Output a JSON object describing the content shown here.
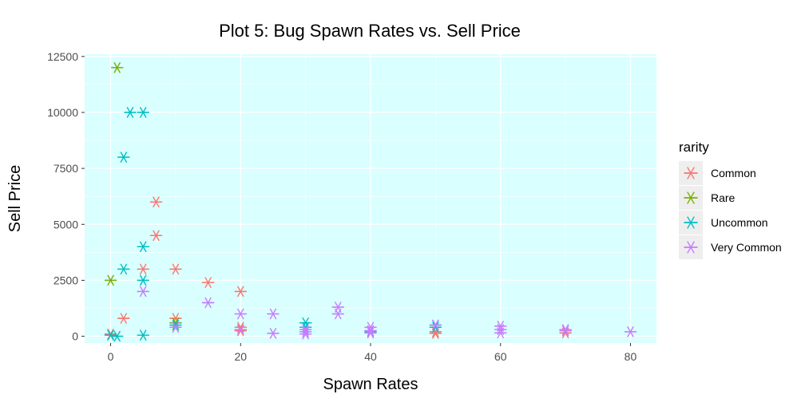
{
  "chart_data": {
    "type": "scatter",
    "title": "Plot 5: Bug Spawn Rates vs. Sell Price",
    "xlabel": "Spawn Rates",
    "ylabel": "Sell Price",
    "xlim": [
      -4,
      84
    ],
    "ylim": [
      -300,
      12600
    ],
    "x_ticks": [
      0,
      20,
      40,
      60,
      80
    ],
    "y_ticks": [
      0,
      2500,
      5000,
      7500,
      10000,
      12500
    ],
    "x_tick_labels": [
      "0",
      "20",
      "40",
      "60",
      "80"
    ],
    "y_tick_labels": [
      "0",
      "2500",
      "5000",
      "7500",
      "10000",
      "12500"
    ],
    "grid": true,
    "panel_background": "#d9ffff",
    "marker": "asterisk",
    "legend": {
      "title": "rarity",
      "position": "right"
    },
    "series": [
      {
        "name": "Common",
        "color": "#f8766d",
        "points": [
          [
            0,
            100
          ],
          [
            2,
            800
          ],
          [
            5,
            3000
          ],
          [
            7,
            6000
          ],
          [
            7,
            4500
          ],
          [
            10,
            3000
          ],
          [
            10,
            800
          ],
          [
            15,
            2400
          ],
          [
            20,
            2000
          ],
          [
            20,
            400
          ],
          [
            20,
            250
          ],
          [
            50,
            200
          ],
          [
            50,
            130
          ],
          [
            70,
            150
          ]
        ]
      },
      {
        "name": "Rare",
        "color": "#7cae00",
        "points": [
          [
            1,
            12000
          ],
          [
            0,
            2500
          ],
          [
            10,
            600
          ]
        ]
      },
      {
        "name": "Uncommon",
        "color": "#00bfc4",
        "points": [
          [
            3,
            10000
          ],
          [
            5,
            10000
          ],
          [
            2,
            8000
          ],
          [
            5,
            4000
          ],
          [
            2,
            3000
          ],
          [
            5,
            2500
          ],
          [
            0,
            50
          ],
          [
            1,
            0
          ],
          [
            5,
            50
          ],
          [
            10,
            500
          ],
          [
            30,
            600
          ],
          [
            30,
            400
          ],
          [
            40,
            200
          ],
          [
            50,
            500
          ],
          [
            50,
            400
          ]
        ]
      },
      {
        "name": "Very Common",
        "color": "#c77cff",
        "points": [
          [
            5,
            2000
          ],
          [
            10,
            400
          ],
          [
            15,
            1500
          ],
          [
            20,
            1000
          ],
          [
            20,
            300
          ],
          [
            25,
            1000
          ],
          [
            25,
            130
          ],
          [
            30,
            300
          ],
          [
            30,
            200
          ],
          [
            30,
            100
          ],
          [
            35,
            1300
          ],
          [
            35,
            1000
          ],
          [
            40,
            400
          ],
          [
            40,
            250
          ],
          [
            40,
            150
          ],
          [
            50,
            500
          ],
          [
            60,
            450
          ],
          [
            60,
            300
          ],
          [
            60,
            150
          ],
          [
            70,
            300
          ],
          [
            70,
            250
          ],
          [
            80,
            200
          ]
        ]
      }
    ]
  }
}
